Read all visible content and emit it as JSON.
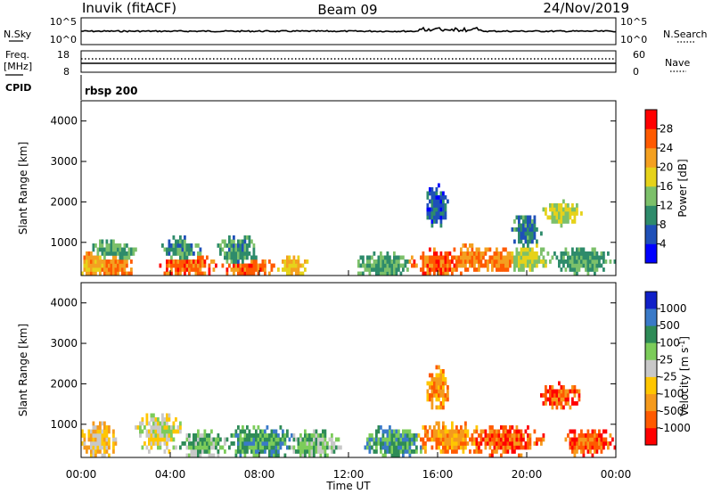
{
  "header": {
    "radar": "Inuvik (fitACF)",
    "beam": "Beam 09",
    "date": "24/Nov/2019"
  },
  "top_panels": {
    "nsky_label": "N.Sky",
    "nsky_ticks": [
      "10^5",
      "10^0"
    ],
    "nsearch_label": "N.Search",
    "nsearch_ticks": [
      "10^5",
      "10^0"
    ],
    "freq_label": "Freq.",
    "freq_unit": "[MHz]",
    "freq_ticks": [
      "18",
      "8"
    ],
    "nave_label": "Nave",
    "nave_ticks": [
      "60",
      "0"
    ],
    "cpid_label": "CPID",
    "cpid_value": "rbsp 200"
  },
  "chart_data": [
    {
      "type": "heatmap",
      "name": "power",
      "ylabel": "Slant Range [km]",
      "yticks": [
        "4000",
        "3000",
        "2000",
        "1000"
      ],
      "ylim": [
        180,
        4500
      ],
      "colorbar_label": "Power [dB]",
      "colorbar_ticks": [
        "28",
        "24",
        "20",
        "16",
        "12",
        "8",
        "4"
      ],
      "colors": [
        "#0000ff",
        "#1f50b8",
        "#2e8b6b",
        "#7cc06a",
        "#e6d21a",
        "#f4a020",
        "#ff5a00",
        "#ff0000"
      ],
      "blobs": [
        {
          "x": 0.5,
          "y": 450,
          "sx": 0.45,
          "sy": 220,
          "v": 22
        },
        {
          "x": 1.5,
          "y": 400,
          "sx": 0.5,
          "sy": 200,
          "v": 24
        },
        {
          "x": 1.5,
          "y": 800,
          "sx": 0.6,
          "sy": 150,
          "v": 12
        },
        {
          "x": 4.8,
          "y": 420,
          "sx": 0.7,
          "sy": 180,
          "v": 26
        },
        {
          "x": 4.5,
          "y": 800,
          "sx": 0.5,
          "sy": 200,
          "v": 10
        },
        {
          "x": 7.5,
          "y": 350,
          "sx": 0.7,
          "sy": 150,
          "v": 26
        },
        {
          "x": 7.0,
          "y": 750,
          "sx": 0.5,
          "sy": 250,
          "v": 11
        },
        {
          "x": 9.5,
          "y": 400,
          "sx": 0.4,
          "sy": 150,
          "v": 20
        },
        {
          "x": 13.5,
          "y": 400,
          "sx": 0.7,
          "sy": 200,
          "v": 12
        },
        {
          "x": 16.0,
          "y": 450,
          "sx": 0.7,
          "sy": 220,
          "v": 26
        },
        {
          "x": 17.5,
          "y": 600,
          "sx": 0.6,
          "sy": 200,
          "v": 24
        },
        {
          "x": 18.8,
          "y": 550,
          "sx": 0.6,
          "sy": 180,
          "v": 24
        },
        {
          "x": 20.0,
          "y": 600,
          "sx": 0.6,
          "sy": 200,
          "v": 16
        },
        {
          "x": 21.6,
          "y": 1700,
          "sx": 0.5,
          "sy": 180,
          "v": 16
        },
        {
          "x": 20.0,
          "y": 1300,
          "sx": 0.4,
          "sy": 250,
          "v": 9
        },
        {
          "x": 22.5,
          "y": 550,
          "sx": 0.8,
          "sy": 200,
          "v": 12
        },
        {
          "x": 16.0,
          "y": 1900,
          "sx": 0.3,
          "sy": 300,
          "v": 7
        }
      ]
    },
    {
      "type": "heatmap",
      "name": "velocity",
      "ylabel": "Slant Range [km]",
      "yticks": [
        "4000",
        "3000",
        "2000",
        "1000"
      ],
      "ylim": [
        180,
        4500
      ],
      "xticks": [
        "00:00",
        "04:00",
        "08:00",
        "12:00",
        "16:00",
        "20:00",
        "00:00"
      ],
      "xlabel": "Time UT",
      "colorbar_label": "Velocity [m s",
      "colorbar_label_sup": "-1",
      "colorbar_label_end": "]",
      "colorbar_ticks": [
        "1000",
        "500",
        "100",
        "25",
        "-25",
        "-100",
        "-500",
        "-1000"
      ],
      "colors": [
        "#ff0000",
        "#ff5a00",
        "#f59a1c",
        "#ffc600",
        "#c8c8c8",
        "#7ccc5a",
        "#2e8b57",
        "#3a7ac8",
        "#1020c8"
      ],
      "blobs": [
        {
          "x": 0.8,
          "y": 600,
          "sx": 0.5,
          "sy": 250,
          "v": 3
        },
        {
          "x": 3.5,
          "y": 800,
          "sx": 0.6,
          "sy": 280,
          "v": 4
        },
        {
          "x": 5.5,
          "y": 500,
          "sx": 0.6,
          "sy": 200,
          "v": 5
        },
        {
          "x": 8.0,
          "y": 550,
          "sx": 0.9,
          "sy": 250,
          "v": 6
        },
        {
          "x": 10.5,
          "y": 500,
          "sx": 0.7,
          "sy": 200,
          "v": 5
        },
        {
          "x": 14.0,
          "y": 550,
          "sx": 0.8,
          "sy": 230,
          "v": 6
        },
        {
          "x": 16.5,
          "y": 650,
          "sx": 0.9,
          "sy": 230,
          "v": 2
        },
        {
          "x": 19.0,
          "y": 600,
          "sx": 1.0,
          "sy": 220,
          "v": 1
        },
        {
          "x": 21.5,
          "y": 1700,
          "sx": 0.5,
          "sy": 180,
          "v": 1
        },
        {
          "x": 22.8,
          "y": 550,
          "sx": 0.7,
          "sy": 200,
          "v": 1
        },
        {
          "x": 16.0,
          "y": 1900,
          "sx": 0.3,
          "sy": 300,
          "v": 2
        }
      ]
    }
  ]
}
